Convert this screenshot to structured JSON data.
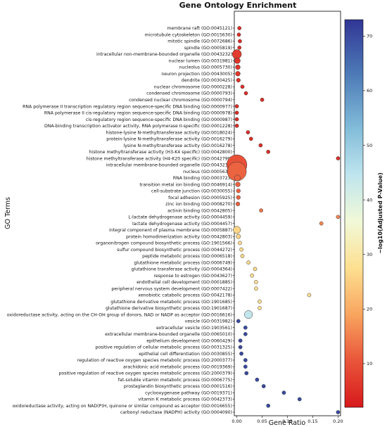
{
  "chart_data": {
    "type": "scatter",
    "title": "Gene Ontology Enrichment",
    "xlabel": "Gene Ratio",
    "ylabel": "GO Terms",
    "xlim": [
      -0.005,
      0.205
    ],
    "xticks": [
      "0.00",
      "0.05",
      "0.10",
      "0.15",
      "0.20"
    ],
    "xtick_values": [
      0,
      0.05,
      0.1,
      0.15,
      0.2
    ],
    "colorbar": {
      "label": "−log10(Adjusted P-Value)",
      "range": [
        2,
        73
      ],
      "ticks": [
        "10",
        "20",
        "30",
        "40",
        "50",
        "60",
        "70"
      ],
      "tick_values": [
        10,
        20,
        30,
        40,
        50,
        60,
        70
      ],
      "colormap": "RdYlBu"
    },
    "points": [
      {
        "term": "membrane raft (GO:0045121)",
        "x": 0.005,
        "color_value": 5,
        "size": 1
      },
      {
        "term": "microtubule cytoskeleton (GO:0015630)",
        "x": 0.004,
        "color_value": 5,
        "size": 1
      },
      {
        "term": "mitotic spindle (GO:0072686)",
        "x": 0.006,
        "color_value": 5,
        "size": 1
      },
      {
        "term": "spindle (GO:0005819)",
        "x": 0.005,
        "color_value": 5,
        "size": 1
      },
      {
        "term": "intracellular non-membrane-bounded organelle (GO:0043232)",
        "x": 0.0,
        "color_value": 7,
        "size": 2.5
      },
      {
        "term": "nuclear lumen (GO:0031981)",
        "x": 0.001,
        "color_value": 6,
        "size": 1.6
      },
      {
        "term": "nucleolus (GO:0005730)",
        "x": 0.002,
        "color_value": 6,
        "size": 1.3
      },
      {
        "term": "neuron projection (GO:0043005)",
        "x": 0.002,
        "color_value": 6,
        "size": 1.3
      },
      {
        "term": "dendrite (GO:0030425)",
        "x": 0.003,
        "color_value": 6,
        "size": 1.1
      },
      {
        "term": "nuclear chromosome (GO:0000228)",
        "x": 0.011,
        "color_value": 5,
        "size": 1
      },
      {
        "term": "condensed chromosome (GO:0000793)",
        "x": 0.018,
        "color_value": 5,
        "size": 1
      },
      {
        "term": "condensed nuclear chromosome (GO:0000794)",
        "x": 0.05,
        "color_value": 5,
        "size": 1
      },
      {
        "term": "RNA polymerase II transcription regulatory region sequence-specific DNA binding (GO:0000977)",
        "x": 0.0,
        "color_value": 5,
        "size": 1
      },
      {
        "term": "RNA polymerase II cis-regulatory region sequence-specific DNA binding (GO:0000978)",
        "x": 0.0,
        "color_value": 5,
        "size": 1
      },
      {
        "term": "cis-regulatory region sequence-specific DNA binding (GO:0000987)",
        "x": 0.0,
        "color_value": 5,
        "size": 1
      },
      {
        "term": "DNA-binding transcription activator activity, RNA polymerase II-specific (GO:0001228)",
        "x": 0.0,
        "color_value": 5,
        "size": 1
      },
      {
        "term": "histone-lysine N-methyltransferase activity (GO:0018024)",
        "x": 0.022,
        "color_value": 5,
        "size": 1
      },
      {
        "term": "protein-lysine N-methyltransferase activity (GO:0016279)",
        "x": 0.028,
        "color_value": 5,
        "size": 1
      },
      {
        "term": "lysine N-methyltransferase activity (GO:0016278)",
        "x": 0.047,
        "color_value": 5,
        "size": 1
      },
      {
        "term": "histone methyltransferase activity (H3-K4 specific) (GO:0042800)",
        "x": 0.062,
        "color_value": 5,
        "size": 1
      },
      {
        "term": "histone methyltransferase activity (H4-K20 specific) (GO:0042799)",
        "x": 0.2,
        "color_value": 5,
        "size": 1
      },
      {
        "term": "intracellular membrane-bounded organelle (GO:0043231)",
        "x": 0.0,
        "color_value": 10,
        "size": 5.5
      },
      {
        "term": "nucleus (GO:0005634)",
        "x": 0.0,
        "color_value": 12,
        "size": 5.2
      },
      {
        "term": "RNA binding (GO:0003723)",
        "x": 0.001,
        "color_value": 12,
        "size": 1.6
      },
      {
        "term": "transition metal ion binding (GO:0046914)",
        "x": 0.002,
        "color_value": 12,
        "size": 1.3
      },
      {
        "term": "cell-substrate junction (GO:0030055)",
        "x": 0.003,
        "color_value": 12,
        "size": 1.1
      },
      {
        "term": "focal adhesion (GO:0005925)",
        "x": 0.003,
        "color_value": 12,
        "size": 1.1
      },
      {
        "term": "zinc ion binding (GO:0008270)",
        "x": 0.002,
        "color_value": 12,
        "size": 1.1
      },
      {
        "term": "actinin binding (GO:0042805)",
        "x": 0.048,
        "color_value": 14,
        "size": 1
      },
      {
        "term": "L-lactate dehydrogenase activity (GO:0004459)",
        "x": 0.2,
        "color_value": 16,
        "size": 1
      },
      {
        "term": "lactate dehydrogenase activity (GO:0004457)",
        "x": 0.167,
        "color_value": 16,
        "size": 1
      },
      {
        "term": "integral component of plasma membrane (GO:0005887)",
        "x": 0.0,
        "color_value": 26,
        "size": 2
      },
      {
        "term": "protein homodimerization activity (GO:0042803)",
        "x": 0.003,
        "color_value": 26,
        "size": 1.2
      },
      {
        "term": "organonitrogen compound biosynthetic process (GO:1901566)",
        "x": 0.006,
        "color_value": 27,
        "size": 1
      },
      {
        "term": "sulfur compound biosynthetic process (GO:0044272)",
        "x": 0.009,
        "color_value": 27,
        "size": 1
      },
      {
        "term": "peptide metabolic process (GO:0006518)",
        "x": 0.011,
        "color_value": 27,
        "size": 1
      },
      {
        "term": "glutathione metabolic process (GO:0006749)",
        "x": 0.023,
        "color_value": 27,
        "size": 1
      },
      {
        "term": "glutathione transferase activity (GO:0004364)",
        "x": 0.036,
        "color_value": 27,
        "size": 1
      },
      {
        "term": "response to estrogen (GO:0043627)",
        "x": 0.03,
        "color_value": 28,
        "size": 1
      },
      {
        "term": "endothelial cell development (GO:0001885)",
        "x": 0.038,
        "color_value": 28,
        "size": 1
      },
      {
        "term": "peripheral nervous system development (GO:0007422)",
        "x": 0.038,
        "color_value": 28,
        "size": 1
      },
      {
        "term": "xenobiotic catabolic process (GO:0042178)",
        "x": 0.143,
        "color_value": 28,
        "size": 1
      },
      {
        "term": "glutathione derivative metabolic process (GO:1901685)",
        "x": 0.045,
        "color_value": 28,
        "size": 1
      },
      {
        "term": "glutathione derivative biosynthetic process (GO:1901687)",
        "x": 0.045,
        "color_value": 28,
        "size": 1
      },
      {
        "term": "oxidoreductase activity, acting on the CH-OH group of donors, NAD or NADP as acceptor (GO:0016616)",
        "x": 0.023,
        "color_value": 44,
        "size": 2.2
      },
      {
        "term": "vesicle (GO:0031982)",
        "x": 0.003,
        "color_value": 70,
        "size": 1
      },
      {
        "term": "extracellular vesicle (GO:1903561)",
        "x": 0.017,
        "color_value": 70,
        "size": 1
      },
      {
        "term": "extracellular membrane-bounded organelle (GO:0065010)",
        "x": 0.017,
        "color_value": 70,
        "size": 1
      },
      {
        "term": "epithelium development (GO:0060429)",
        "x": 0.007,
        "color_value": 70,
        "size": 1
      },
      {
        "term": "positive regulation of cellular metabolic process (GO:0031325)",
        "x": 0.007,
        "color_value": 70,
        "size": 1
      },
      {
        "term": "epithelial cell differentiation (GO:0030855)",
        "x": 0.009,
        "color_value": 70,
        "size": 1
      },
      {
        "term": "regulation of reactive oxygen species metabolic process (GO:2000377)",
        "x": 0.017,
        "color_value": 70,
        "size": 1
      },
      {
        "term": "arachidonic acid metabolic process (GO:0019369)",
        "x": 0.017,
        "color_value": 70,
        "size": 1
      },
      {
        "term": "positive regulation of reactive oxygen species metabolic process (GO:2000379)",
        "x": 0.019,
        "color_value": 70,
        "size": 1
      },
      {
        "term": "fat-soluble vitamin metabolic process (GO:0006775)",
        "x": 0.04,
        "color_value": 70,
        "size": 1
      },
      {
        "term": "prostaglandin biosynthetic process (GO:0001516)",
        "x": 0.053,
        "color_value": 70,
        "size": 1
      },
      {
        "term": "cyclooxygenase pathway (GO:0019371)",
        "x": 0.093,
        "color_value": 70,
        "size": 1
      },
      {
        "term": "vitamin K metabolic process (GO:0042373)",
        "x": 0.124,
        "color_value": 70,
        "size": 1
      },
      {
        "term": "oxidoreductase activity, acting on NAD(P)H, quinone or similar compound as acceptor (GO:0016655)",
        "x": 0.062,
        "color_value": 70,
        "size": 1
      },
      {
        "term": "carbonyl reductase (NADPH) activity (GO:0004090)",
        "x": 0.2,
        "color_value": 70,
        "size": 1
      }
    ]
  }
}
